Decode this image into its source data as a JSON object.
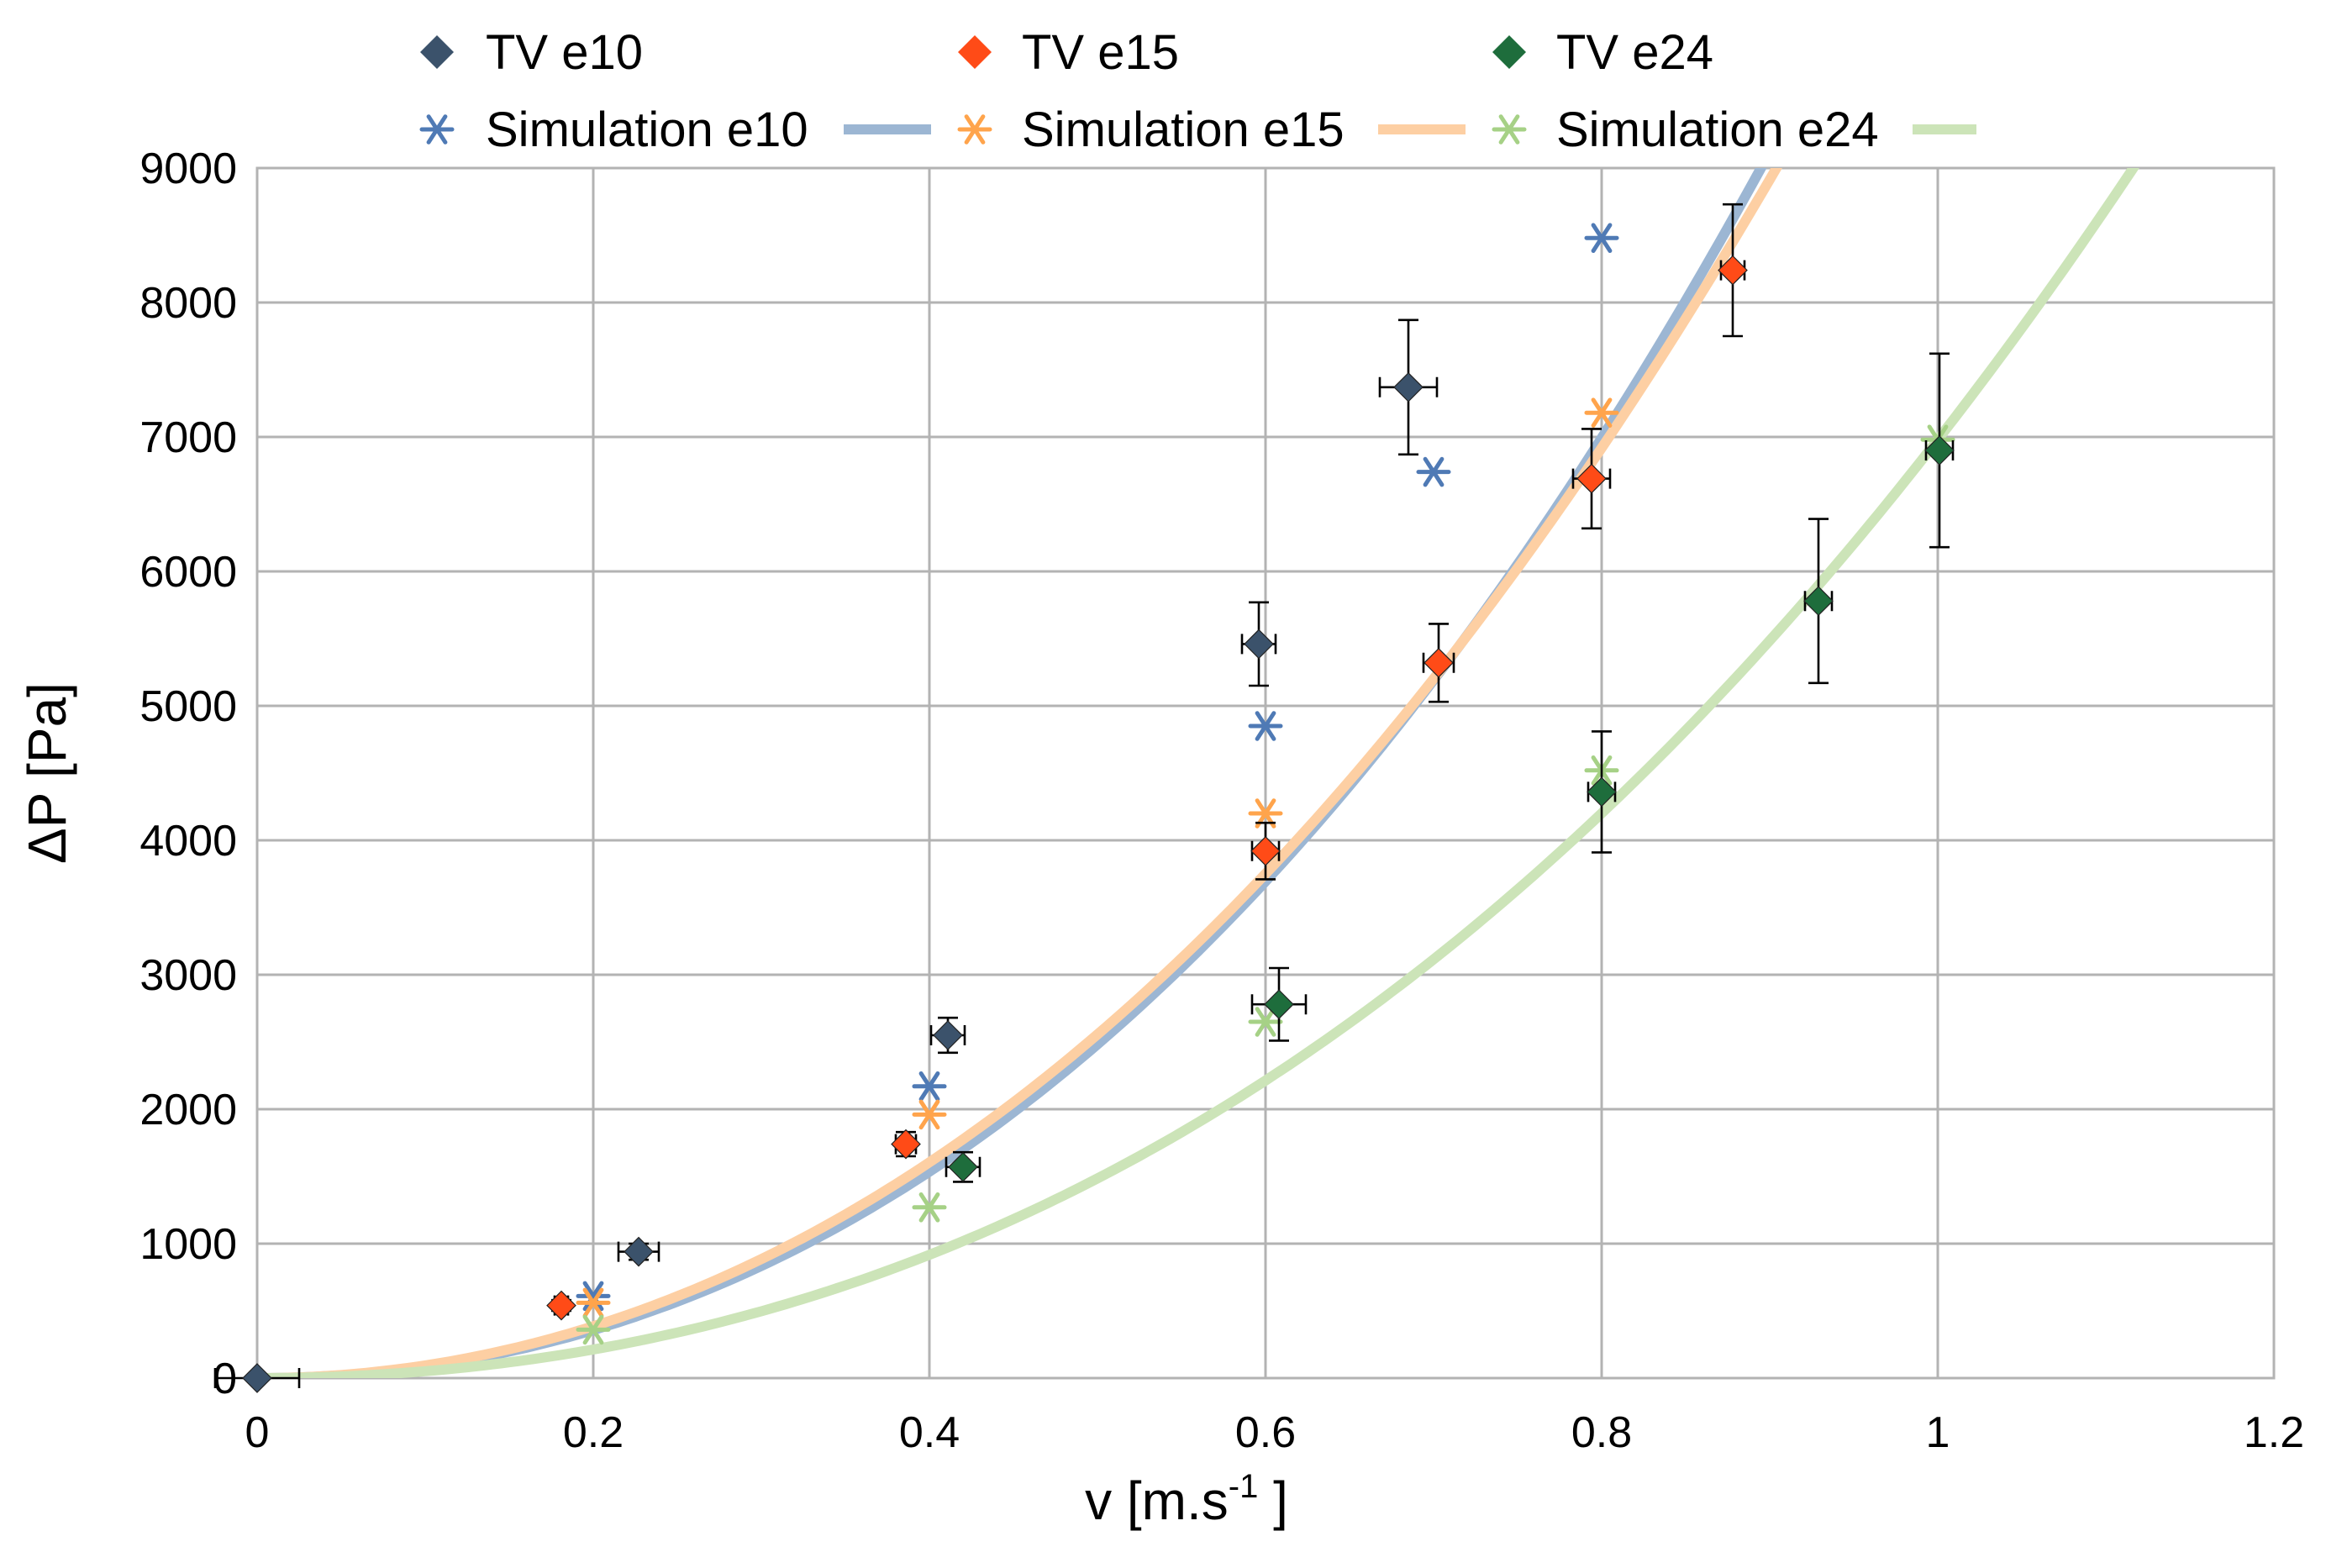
{
  "chart_data": {
    "type": "scatter",
    "xlabel": "v [m.s",
    "xlabel_sup": "-1",
    "xlabel_end": " ]",
    "ylabel": "ΔP [Pa]",
    "xlim": [
      0,
      1.2
    ],
    "ylim": [
      0,
      9000
    ],
    "x_ticks": [
      0,
      0.2,
      0.4,
      0.6,
      0.8,
      1,
      1.2
    ],
    "x_tick_labels": [
      "0",
      "0.2",
      "0.4",
      "0.6",
      "0.8",
      "1",
      "1.2"
    ],
    "y_ticks": [
      0,
      1000,
      2000,
      3000,
      4000,
      5000,
      6000,
      7000,
      8000,
      9000
    ],
    "y_tick_labels": [
      "0",
      "1000",
      "2000",
      "3000",
      "4000",
      "5000",
      "6000",
      "7000",
      "8000",
      "9000"
    ],
    "grid": true,
    "legend_position": "top",
    "measured": [
      {
        "name": "TV e10",
        "color": "#3b526b",
        "points": [
          {
            "x": 0.0,
            "y": 0,
            "xerr": 0.025,
            "yerr": 0
          },
          {
            "x": 0.227,
            "y": 940,
            "xerr": 0.012,
            "yerr": 60
          },
          {
            "x": 0.411,
            "y": 2550,
            "xerr": 0.01,
            "yerr": 130
          },
          {
            "x": 0.596,
            "y": 5460,
            "xerr": 0.01,
            "yerr": 310
          },
          {
            "x": 0.685,
            "y": 7370,
            "xerr": 0.017,
            "yerr": 500
          }
        ]
      },
      {
        "name": "TV e15",
        "color": "#ff4b17",
        "points": [
          {
            "x": 0.181,
            "y": 540,
            "xerr": 0.004,
            "yerr": 40
          },
          {
            "x": 0.386,
            "y": 1740,
            "xerr": 0.006,
            "yerr": 90
          },
          {
            "x": 0.6,
            "y": 3920,
            "xerr": 0.008,
            "yerr": 210
          },
          {
            "x": 0.703,
            "y": 5320,
            "xerr": 0.009,
            "yerr": 290
          },
          {
            "x": 0.794,
            "y": 6690,
            "xerr": 0.011,
            "yerr": 370
          },
          {
            "x": 0.878,
            "y": 8240,
            "xerr": 0.007,
            "yerr": 490
          }
        ]
      },
      {
        "name": "TV e24",
        "color": "#1e6d3c",
        "points": [
          {
            "x": 0.42,
            "y": 1570,
            "xerr": 0.01,
            "yerr": 110
          },
          {
            "x": 0.608,
            "y": 2780,
            "xerr": 0.016,
            "yerr": 270
          },
          {
            "x": 0.8,
            "y": 4360,
            "xerr": 0.008,
            "yerr": 450
          },
          {
            "x": 0.929,
            "y": 5780,
            "xerr": 0.008,
            "yerr": 610
          },
          {
            "x": 1.001,
            "y": 6900,
            "xerr": 0.008,
            "yerr": 720
          }
        ]
      }
    ],
    "simulations": [
      {
        "name": "Simulation e10",
        "marker_color": "#4f7ab5",
        "line_color": "#9cb6d3",
        "points": [
          [
            0.2,
            610
          ],
          [
            0.4,
            2170
          ],
          [
            0.6,
            4850
          ],
          [
            0.7,
            6740
          ],
          [
            0.8,
            8480
          ]
        ],
        "fit": {
          "a": 8270,
          "b": 3320
        }
      },
      {
        "name": "Simulation e15",
        "marker_color": "#ffa44c",
        "line_color": "#fdcfa3",
        "points": [
          [
            0.2,
            560
          ],
          [
            0.4,
            1960
          ],
          [
            0.6,
            4200
          ],
          [
            0.8,
            7180
          ]
        ],
        "fit": {
          "a": 9250,
          "b": 1950
        }
      },
      {
        "name": "Simulation e24",
        "marker_color": "#a6d186",
        "line_color": "#cce4b8",
        "points": [
          [
            0.2,
            360
          ],
          [
            0.4,
            1270
          ],
          [
            0.6,
            2650
          ],
          [
            0.8,
            4520
          ],
          [
            1.0,
            6980
          ]
        ],
        "fit": {
          "a": 4900,
          "b": 2080
        }
      }
    ]
  }
}
